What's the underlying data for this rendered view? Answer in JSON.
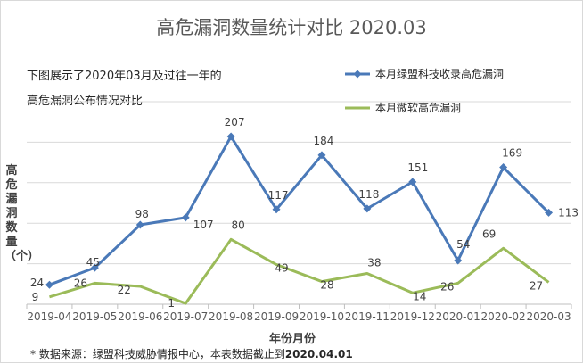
{
  "title": "高危漏洞数量统计对比 2020.03",
  "intro": {
    "line1": "下图展示了2020年03月及过往一年的",
    "line2": "高危漏洞公布情况对比"
  },
  "footnote": {
    "prefix": "* 数据来源：绿盟科技威胁情报中心，本表数据截止到",
    "date": "2020.04.01"
  },
  "colors": {
    "nsfocus": "#4a79b8",
    "microsoft": "#9bbb59",
    "grid": "#d9d9d9"
  },
  "chart_data": {
    "type": "line",
    "xlabel": "年份月份",
    "ylabel": "高危漏洞数量（个）",
    "categories": [
      "2019-04",
      "2019-05",
      "2019-06",
      "2019-07",
      "2019-08",
      "2019-09",
      "2019-10",
      "2019-11",
      "2019-12",
      "2020-01",
      "2020-02",
      "2020-03"
    ],
    "ylim": [
      0,
      250
    ],
    "grid": true,
    "legend_position": "top-right",
    "series": [
      {
        "name": "本月绿盟科技收录高危漏洞",
        "marker": "diamond",
        "values": [
          24,
          45,
          98,
          107,
          207,
          117,
          184,
          118,
          151,
          54,
          169,
          113
        ]
      },
      {
        "name": "本月微软高危漏洞",
        "marker": "none",
        "values": [
          9,
          26,
          22,
          1,
          80,
          49,
          28,
          38,
          14,
          26,
          69,
          27
        ]
      }
    ]
  }
}
